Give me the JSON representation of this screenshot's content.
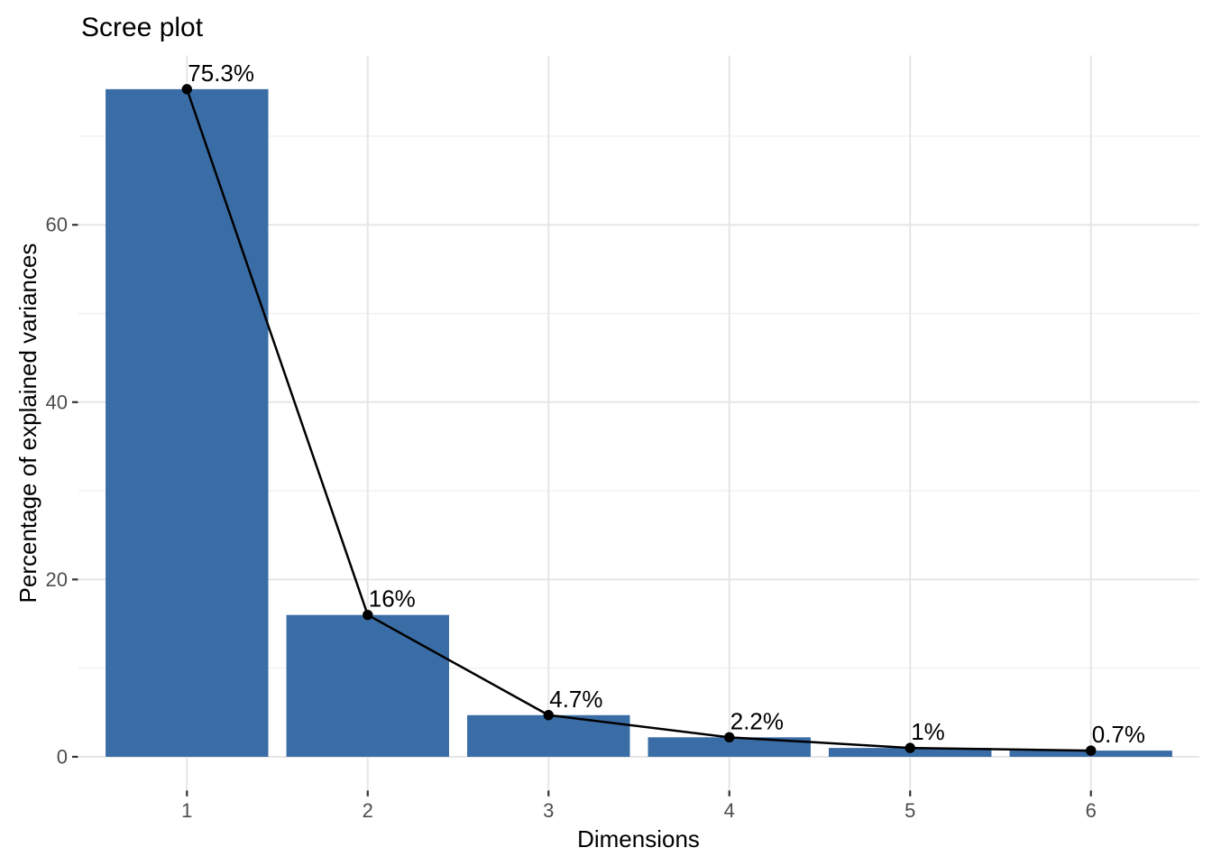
{
  "chart_data": {
    "type": "bar",
    "overlay": "line+points",
    "title": "Scree plot",
    "xlabel": "Dimensions",
    "ylabel": "Percentage of explained variances",
    "categories": [
      "1",
      "2",
      "3",
      "4",
      "5",
      "6"
    ],
    "values": [
      75.3,
      16,
      4.7,
      2.2,
      1,
      0.7
    ],
    "point_labels": [
      "75.3%",
      "16%",
      "4.7%",
      "2.2%",
      "1%",
      "0.7%"
    ],
    "y_major_ticks": [
      0,
      20,
      40,
      60
    ],
    "y_minor_ticks": [
      10,
      30,
      50,
      70
    ],
    "ylim": [
      -3.8,
      79.1
    ],
    "xlim": [
      0.4,
      6.6
    ],
    "bar_width": 0.9,
    "grid": true,
    "legend_position": "none",
    "colors": {
      "bar_fill": "#3A6DA6",
      "line": "#000000",
      "point": "#000000",
      "grid_major": "#E6E6E6",
      "grid_minor": "#F0F0F0",
      "axis_tick": "#333333",
      "tick_label": "#4D4D4D",
      "title_text": "#000000",
      "background": "#FFFFFF"
    }
  }
}
